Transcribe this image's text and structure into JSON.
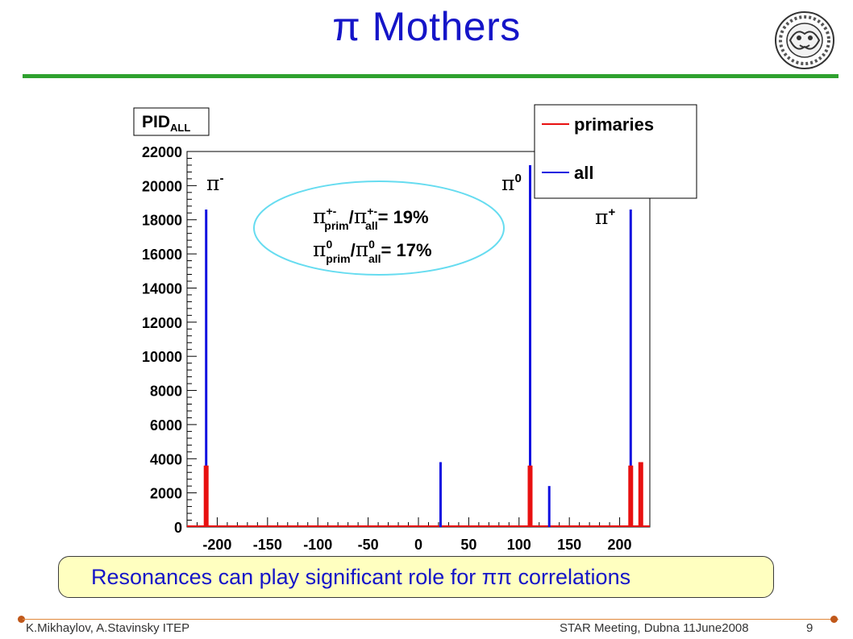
{
  "slide": {
    "title": "π Mothers",
    "note": "Resonances can play significant role for ππ correlations",
    "footer_left": "K.Mikhaylov, A.Stavinsky ITEP",
    "footer_center": "STAR Meeting, Dubna 11June2008",
    "footer_page": "9"
  },
  "colors": {
    "title": "#1515c8",
    "rule": "#2fa12f",
    "primaries": "#e81010",
    "all": "#1010e0",
    "ellipse": "#66dcf0",
    "note_bg": "#ffffc0"
  },
  "chart_data": {
    "type": "bar",
    "title": "PID",
    "title_sub": "ALL",
    "xlim": [
      -230,
      230
    ],
    "ylim": [
      0,
      22000
    ],
    "xticks": [
      -200,
      -150,
      -100,
      -50,
      0,
      50,
      100,
      150,
      200
    ],
    "yticks": [
      0,
      2000,
      4000,
      6000,
      8000,
      10000,
      12000,
      14000,
      16000,
      18000,
      20000,
      22000
    ],
    "legend_position": "top-right",
    "series": [
      {
        "name": "all",
        "color": "#1010e0",
        "x": [
          -211,
          22,
          111,
          130,
          211,
          221
        ],
        "values": [
          18600,
          3800,
          21200,
          2400,
          18600,
          3200
        ]
      },
      {
        "name": "primaries",
        "color": "#e81010",
        "x": [
          -211,
          111,
          211,
          221
        ],
        "values": [
          3600,
          3600,
          3600,
          3800
        ]
      }
    ],
    "annotations": {
      "pi_minus": {
        "base": "π",
        "sup": "-"
      },
      "pi_zero": {
        "base": "π",
        "sup": "0"
      },
      "pi_plus": {
        "base": "π",
        "sup": "+"
      },
      "ratio_charged": {
        "base1": "π",
        "sup1": "+-",
        "sub1": "prim",
        "sep": "/",
        "base2": "π",
        "sup2": "+-",
        "sub2": "all",
        "value": "= 19%"
      },
      "ratio_neutral": {
        "base1": "π",
        "sup1": "0",
        "sub1": "prim",
        "sep": "/",
        "base2": "π",
        "sup2": "0",
        "sub2": "all",
        "value": "= 17%"
      }
    }
  }
}
